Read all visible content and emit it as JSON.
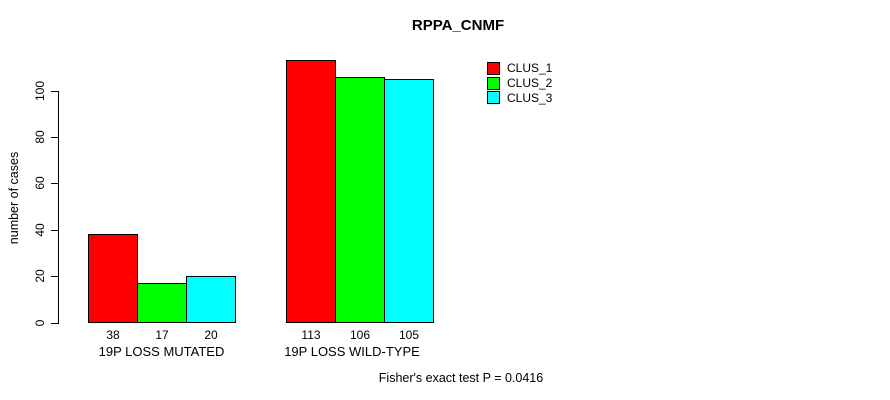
{
  "page": {
    "background_color": "#ffffff",
    "text_color": "#000000"
  },
  "chart_data": {
    "type": "bar",
    "title": "RPPA_CNMF",
    "xlabel": "",
    "ylabel": "number of cases",
    "categories": [
      "19P LOSS MUTATED",
      "19P LOSS WILD-TYPE"
    ],
    "series": [
      {
        "name": "CLUS_1",
        "color": "#ff0000",
        "values": [
          38,
          113
        ]
      },
      {
        "name": "CLUS_2",
        "color": "#00ff00",
        "values": [
          17,
          106
        ]
      },
      {
        "name": "CLUS_3",
        "color": "#00ffff",
        "values": [
          20,
          105
        ]
      }
    ],
    "show_bar_values": true,
    "yticks": [
      0,
      20,
      40,
      60,
      80,
      100
    ],
    "ylim": [
      0,
      117
    ],
    "grid": false,
    "legend_position": "top-right",
    "bar_border_color": "#000000",
    "axis_color": "#000000",
    "annotation": "Fisher's exact test P = 0.0416"
  }
}
